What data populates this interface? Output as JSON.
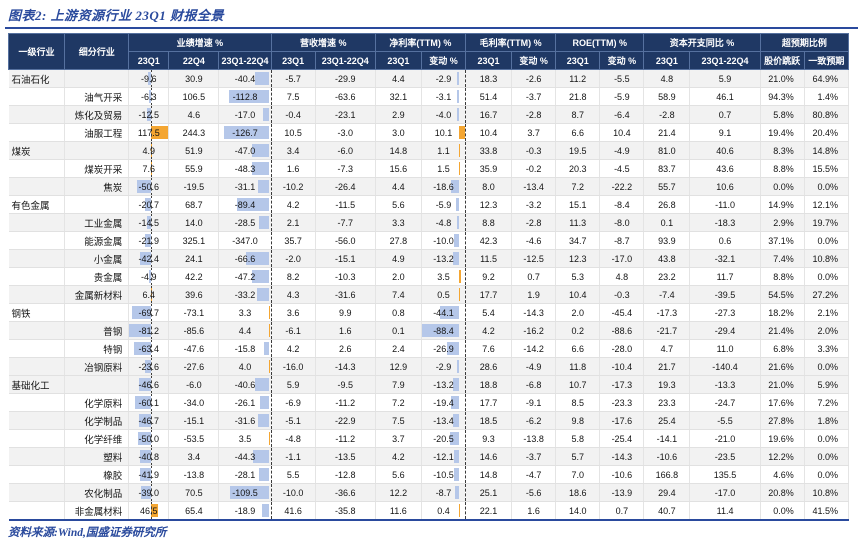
{
  "title": "图表2: 上游资源行业 23Q1 财报全景",
  "source": "资料来源:Wind,国盛证券研究所",
  "colors": {
    "header_bg": "#1F3864",
    "accent_blue": "#2A4A9D",
    "bar_negative": "#B5C7E9",
    "bar_positive": "#F4A632",
    "row_shade": "#F2F2F2"
  },
  "chart_data": {
    "type": "table",
    "title": "图表2: 上游资源行业 23Q1 财报全景",
    "header": {
      "industry_col": "一级行业",
      "sub_col": "细分行业",
      "groups": [
        {
          "label": "业绩增速 %",
          "subs": [
            "23Q1",
            "22Q4",
            "23Q1-22Q4"
          ]
        },
        {
          "label": "营收增速 %",
          "subs": [
            "23Q1",
            "23Q1-22Q4"
          ]
        },
        {
          "label": "净利率(TTM) %",
          "subs": [
            "23Q1",
            "变动 %"
          ]
        },
        {
          "label": "毛利率(TTM) %",
          "subs": [
            "23Q1",
            "变动 %"
          ]
        },
        {
          "label": "ROE(TTM) %",
          "subs": [
            "23Q1",
            "变动 %"
          ]
        },
        {
          "label": "资本开支同比 %",
          "subs": [
            "23Q1",
            "23Q1-22Q4"
          ]
        },
        {
          "label": "超预期比例",
          "subs": [
            "股价跳跃",
            "一致预期"
          ]
        }
      ]
    },
    "value_columns": [
      "业绩增速23Q1",
      "业绩增速22Q4",
      "业绩增速23Q1-22Q4",
      "营收增速23Q1",
      "营收增速23Q1-22Q4",
      "净利率TTM23Q1",
      "净利率变动%",
      "毛利率TTM23Q1",
      "毛利率变动%",
      "ROE TTM 23Q1",
      "ROE变动%",
      "资本开支同比23Q1",
      "资本开支同比23Q1-22Q4"
    ],
    "percent_columns": [
      "股价跳跃",
      "一致预期"
    ],
    "rows": [
      {
        "industry": "石油石化",
        "sub": "",
        "v": [
          -9.6,
          30.9,
          -40.4,
          -5.7,
          -29.9,
          4.4,
          -2.9,
          18.3,
          -2.6,
          11.2,
          -5.5,
          4.8,
          5.9
        ],
        "p": [
          "21.0%",
          "64.9%"
        ]
      },
      {
        "sub": "油气开采",
        "v": [
          -6.3,
          106.5,
          -112.8,
          7.5,
          -63.6,
          32.1,
          -3.1,
          51.4,
          -3.7,
          21.8,
          -5.9,
          58.9,
          46.1
        ],
        "p": [
          "94.3%",
          "1.4%"
        ]
      },
      {
        "sub": "炼化及贸易",
        "v": [
          -12.5,
          4.6,
          -17.0,
          -0.4,
          -23.1,
          2.9,
          -4.0,
          16.7,
          -2.8,
          8.7,
          -6.4,
          -2.8,
          0.7
        ],
        "p": [
          "5.8%",
          "80.8%"
        ]
      },
      {
        "sub": "油服工程",
        "v": [
          117.5,
          244.3,
          -126.7,
          10.5,
          -3.0,
          3.0,
          10.1,
          10.4,
          3.7,
          6.6,
          10.4,
          21.4,
          9.1
        ],
        "p": [
          "19.4%",
          "20.4%"
        ]
      },
      {
        "industry": "煤炭",
        "sub": "",
        "v": [
          4.9,
          51.9,
          -47.0,
          3.4,
          -6.0,
          14.8,
          1.1,
          33.8,
          -0.3,
          19.5,
          -4.9,
          81.0,
          40.6
        ],
        "p": [
          "8.3%",
          "14.8%"
        ]
      },
      {
        "sub": "煤炭开采",
        "v": [
          7.6,
          55.9,
          -48.3,
          1.6,
          -7.3,
          15.6,
          1.5,
          35.9,
          -0.2,
          20.3,
          -4.5,
          83.7,
          43.6
        ],
        "p": [
          "8.8%",
          "15.5%"
        ]
      },
      {
        "sub": "焦炭",
        "v": [
          -50.6,
          -19.5,
          -31.1,
          -10.2,
          -26.4,
          4.4,
          -18.6,
          8.0,
          -13.4,
          7.2,
          -22.2,
          55.7,
          10.6
        ],
        "p": [
          "0.0%",
          "0.0%"
        ]
      },
      {
        "industry": "有色金属",
        "sub": "",
        "v": [
          -20.7,
          68.7,
          -89.4,
          4.2,
          -11.5,
          5.6,
          -5.9,
          12.3,
          -3.2,
          15.1,
          -8.4,
          26.8,
          -11.0
        ],
        "p": [
          "14.9%",
          "12.1%"
        ]
      },
      {
        "sub": "工业金属",
        "v": [
          -14.5,
          14.0,
          -28.5,
          2.1,
          -7.7,
          3.3,
          -4.8,
          8.8,
          -2.8,
          11.3,
          -8.0,
          0.1,
          -18.3
        ],
        "p": [
          "2.9%",
          "19.7%"
        ]
      },
      {
        "sub": "能源金属",
        "v": [
          -21.9,
          325.1,
          -347.0,
          35.7,
          -56.0,
          27.8,
          -10.0,
          42.3,
          -4.6,
          34.7,
          -8.7,
          93.9,
          0.6
        ],
        "p": [
          "37.1%",
          "0.0%"
        ]
      },
      {
        "sub": "小金属",
        "v": [
          -42.4,
          24.1,
          -66.6,
          -2.0,
          -15.1,
          4.9,
          -13.2,
          11.5,
          -12.5,
          12.3,
          -17.0,
          43.8,
          -32.1
        ],
        "p": [
          "7.4%",
          "10.8%"
        ]
      },
      {
        "sub": "贵金属",
        "v": [
          -4.9,
          42.2,
          -47.2,
          8.2,
          -10.3,
          2.0,
          3.5,
          9.2,
          0.7,
          5.3,
          4.8,
          23.2,
          11.7
        ],
        "p": [
          "8.8%",
          "0.0%"
        ]
      },
      {
        "sub": "金属新材料",
        "v": [
          6.4,
          39.6,
          -33.2,
          4.3,
          -31.6,
          7.4,
          0.5,
          17.7,
          1.9,
          10.4,
          -0.3,
          -7.4,
          -39.5
        ],
        "p": [
          "54.5%",
          "27.2%"
        ]
      },
      {
        "industry": "钢铁",
        "sub": "",
        "v": [
          -69.7,
          -73.1,
          3.3,
          3.6,
          9.9,
          0.8,
          -44.1,
          5.4,
          -14.3,
          2.0,
          -45.4,
          -17.3,
          -27.3
        ],
        "p": [
          "18.2%",
          "2.1%"
        ]
      },
      {
        "sub": "普钢",
        "v": [
          -81.2,
          -85.6,
          4.4,
          -6.1,
          1.6,
          0.1,
          -88.4,
          4.2,
          -16.2,
          0.2,
          -88.6,
          -21.7,
          -29.4
        ],
        "p": [
          "21.4%",
          "2.0%"
        ]
      },
      {
        "sub": "特钢",
        "v": [
          -63.4,
          -47.6,
          -15.8,
          4.2,
          2.6,
          2.4,
          -26.9,
          7.6,
          -14.2,
          6.6,
          -28.0,
          4.7,
          11.0
        ],
        "p": [
          "6.8%",
          "3.3%"
        ]
      },
      {
        "sub": "冶钢原料",
        "v": [
          -23.6,
          -27.6,
          4.0,
          -16.0,
          -14.3,
          12.9,
          -2.9,
          28.6,
          -4.9,
          11.8,
          -10.4,
          21.7,
          -140.4
        ],
        "p": [
          "21.6%",
          "0.0%"
        ]
      },
      {
        "industry": "基础化工",
        "sub": "",
        "v": [
          -46.6,
          -6.0,
          -40.6,
          5.9,
          -9.5,
          7.9,
          -13.2,
          18.8,
          -6.8,
          10.7,
          -17.3,
          19.3,
          -13.3
        ],
        "p": [
          "21.0%",
          "5.9%"
        ]
      },
      {
        "sub": "化学原料",
        "v": [
          -60.1,
          -34.0,
          -26.1,
          -6.9,
          -11.2,
          7.2,
          -19.4,
          17.7,
          -9.1,
          8.5,
          -23.3,
          23.3,
          -24.7
        ],
        "p": [
          "17.6%",
          "7.2%"
        ]
      },
      {
        "sub": "化学制品",
        "v": [
          -46.7,
          -15.1,
          -31.6,
          -5.1,
          -22.9,
          7.5,
          -13.4,
          18.5,
          -6.2,
          9.8,
          -17.6,
          25.4,
          -5.5
        ],
        "p": [
          "27.8%",
          "1.8%"
        ]
      },
      {
        "sub": "化学纤维",
        "v": [
          -50.0,
          -53.5,
          3.5,
          -4.8,
          -11.2,
          3.7,
          -20.5,
          9.3,
          -13.8,
          5.8,
          -25.4,
          -14.1,
          -21.0
        ],
        "p": [
          "19.6%",
          "0.0%"
        ]
      },
      {
        "sub": "塑料",
        "v": [
          -40.8,
          3.4,
          -44.3,
          -1.1,
          -13.5,
          4.2,
          -12.1,
          14.6,
          -3.7,
          5.7,
          -14.3,
          -10.6,
          -23.5
        ],
        "p": [
          "12.2%",
          "0.0%"
        ]
      },
      {
        "sub": "橡胶",
        "v": [
          -41.9,
          -13.8,
          -28.1,
          5.5,
          -12.8,
          5.6,
          -10.5,
          14.8,
          -4.7,
          7.0,
          -10.6,
          166.8,
          135.5
        ],
        "p": [
          "4.6%",
          "0.0%"
        ]
      },
      {
        "sub": "农化制品",
        "v": [
          -39.0,
          70.5,
          -109.5,
          -10.0,
          -36.6,
          12.2,
          -8.7,
          25.1,
          -5.6,
          18.6,
          -13.9,
          29.4,
          -17.0
        ],
        "p": [
          "20.8%",
          "10.8%"
        ]
      },
      {
        "sub": "非金属材料",
        "v": [
          46.5,
          65.4,
          -18.9,
          41.6,
          -35.8,
          11.6,
          0.4,
          22.1,
          1.6,
          14.0,
          0.7,
          40.7,
          11.4
        ],
        "p": [
          "0.0%",
          "41.5%"
        ]
      }
    ]
  }
}
